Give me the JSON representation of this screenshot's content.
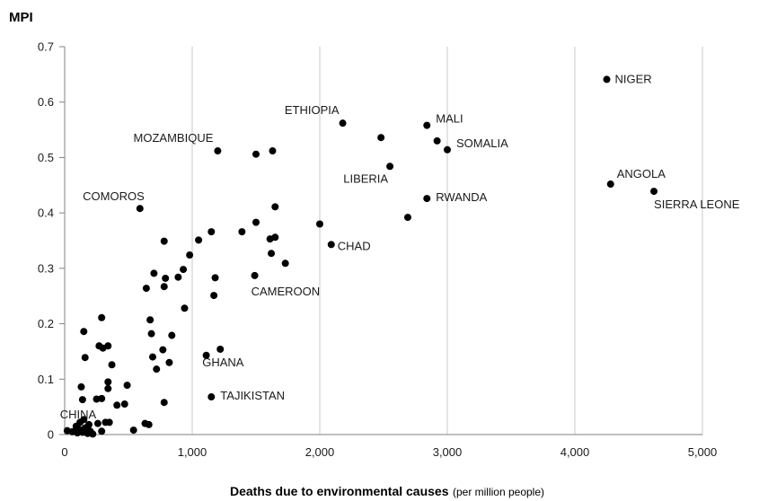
{
  "chart_data": {
    "type": "scatter",
    "ylabel": "MPI",
    "xlabel": "Deaths due to environmental causes",
    "xlabel_unit": "(per million people)",
    "xlim": [
      0,
      5000
    ],
    "ylim": [
      0,
      0.7
    ],
    "xticks": [
      0,
      1000,
      2000,
      3000,
      4000,
      5000
    ],
    "xtick_labels": [
      "0",
      "1,000",
      "2,000",
      "3,000",
      "4,000",
      "5,000"
    ],
    "yticks": [
      0,
      0.1,
      0.2,
      0.3,
      0.4,
      0.5,
      0.6,
      0.7
    ],
    "ytick_labels": [
      "0",
      "0.1",
      "0.2",
      "0.3",
      "0.4",
      "0.5",
      "0.6",
      "0.7"
    ],
    "grid": "vertical",
    "marker_color": "#000000",
    "points": [
      {
        "x": 4250,
        "y": 0.641,
        "label": "NIGER"
      },
      {
        "x": 4280,
        "y": 0.452,
        "label": "ANGOLA"
      },
      {
        "x": 4620,
        "y": 0.439,
        "label": "SIERRA LEONE"
      },
      {
        "x": 2840,
        "y": 0.558,
        "label": "MALI"
      },
      {
        "x": 3000,
        "y": 0.514,
        "label": "SOMALIA"
      },
      {
        "x": 2920,
        "y": 0.53
      },
      {
        "x": 2480,
        "y": 0.536
      },
      {
        "x": 2180,
        "y": 0.562,
        "label": "ETHIOPIA"
      },
      {
        "x": 2550,
        "y": 0.484,
        "label": "LIBERIA"
      },
      {
        "x": 2840,
        "y": 0.426,
        "label": "RWANDA"
      },
      {
        "x": 2690,
        "y": 0.392
      },
      {
        "x": 1200,
        "y": 0.512,
        "label": "MOZAMBIQUE"
      },
      {
        "x": 1500,
        "y": 0.506
      },
      {
        "x": 1630,
        "y": 0.512
      },
      {
        "x": 590,
        "y": 0.408,
        "label": "COMOROS"
      },
      {
        "x": 1650,
        "y": 0.411
      },
      {
        "x": 1500,
        "y": 0.383
      },
      {
        "x": 1390,
        "y": 0.366
      },
      {
        "x": 1150,
        "y": 0.366
      },
      {
        "x": 2000,
        "y": 0.38
      },
      {
        "x": 2090,
        "y": 0.343,
        "label": "CHAD"
      },
      {
        "x": 1650,
        "y": 0.356
      },
      {
        "x": 1610,
        "y": 0.353
      },
      {
        "x": 1050,
        "y": 0.351
      },
      {
        "x": 780,
        "y": 0.349
      },
      {
        "x": 1620,
        "y": 0.327
      },
      {
        "x": 1730,
        "y": 0.309
      },
      {
        "x": 980,
        "y": 0.324
      },
      {
        "x": 930,
        "y": 0.298
      },
      {
        "x": 700,
        "y": 0.291
      },
      {
        "x": 1490,
        "y": 0.287,
        "label": "CAMEROON"
      },
      {
        "x": 890,
        "y": 0.284
      },
      {
        "x": 1180,
        "y": 0.283
      },
      {
        "x": 790,
        "y": 0.282
      },
      {
        "x": 780,
        "y": 0.267
      },
      {
        "x": 640,
        "y": 0.264
      },
      {
        "x": 1170,
        "y": 0.251
      },
      {
        "x": 940,
        "y": 0.228
      },
      {
        "x": 670,
        "y": 0.207
      },
      {
        "x": 290,
        "y": 0.211
      },
      {
        "x": 150,
        "y": 0.186
      },
      {
        "x": 680,
        "y": 0.182
      },
      {
        "x": 840,
        "y": 0.179
      },
      {
        "x": 270,
        "y": 0.16
      },
      {
        "x": 340,
        "y": 0.16
      },
      {
        "x": 300,
        "y": 0.156
      },
      {
        "x": 1220,
        "y": 0.154,
        "label": "GHANA"
      },
      {
        "x": 770,
        "y": 0.153
      },
      {
        "x": 1110,
        "y": 0.143
      },
      {
        "x": 690,
        "y": 0.14
      },
      {
        "x": 160,
        "y": 0.139
      },
      {
        "x": 820,
        "y": 0.13
      },
      {
        "x": 370,
        "y": 0.126
      },
      {
        "x": 720,
        "y": 0.118
      },
      {
        "x": 340,
        "y": 0.095
      },
      {
        "x": 490,
        "y": 0.089
      },
      {
        "x": 130,
        "y": 0.086
      },
      {
        "x": 340,
        "y": 0.083
      },
      {
        "x": 1150,
        "y": 0.068,
        "label": "TAJIKISTAN"
      },
      {
        "x": 290,
        "y": 0.065
      },
      {
        "x": 250,
        "y": 0.064
      },
      {
        "x": 140,
        "y": 0.063
      },
      {
        "x": 780,
        "y": 0.058
      },
      {
        "x": 470,
        "y": 0.055
      },
      {
        "x": 410,
        "y": 0.053
      },
      {
        "x": 320,
        "y": 0.022
      },
      {
        "x": 350,
        "y": 0.022
      },
      {
        "x": 260,
        "y": 0.02
      },
      {
        "x": 630,
        "y": 0.02
      },
      {
        "x": 660,
        "y": 0.018
      },
      {
        "x": 150,
        "y": 0.027
      },
      {
        "x": 120,
        "y": 0.022
      },
      {
        "x": 190,
        "y": 0.018,
        "label": "CHINA"
      },
      {
        "x": 90,
        "y": 0.015
      },
      {
        "x": 160,
        "y": 0.012
      },
      {
        "x": 110,
        "y": 0.01
      },
      {
        "x": 200,
        "y": 0.006
      },
      {
        "x": 20,
        "y": 0.007
      },
      {
        "x": 60,
        "y": 0.005
      },
      {
        "x": 140,
        "y": 0.004
      },
      {
        "x": 290,
        "y": 0.006
      },
      {
        "x": 540,
        "y": 0.008
      },
      {
        "x": 180,
        "y": 0.002
      },
      {
        "x": 220,
        "y": 0.001
      },
      {
        "x": 100,
        "y": 0.003
      }
    ]
  }
}
